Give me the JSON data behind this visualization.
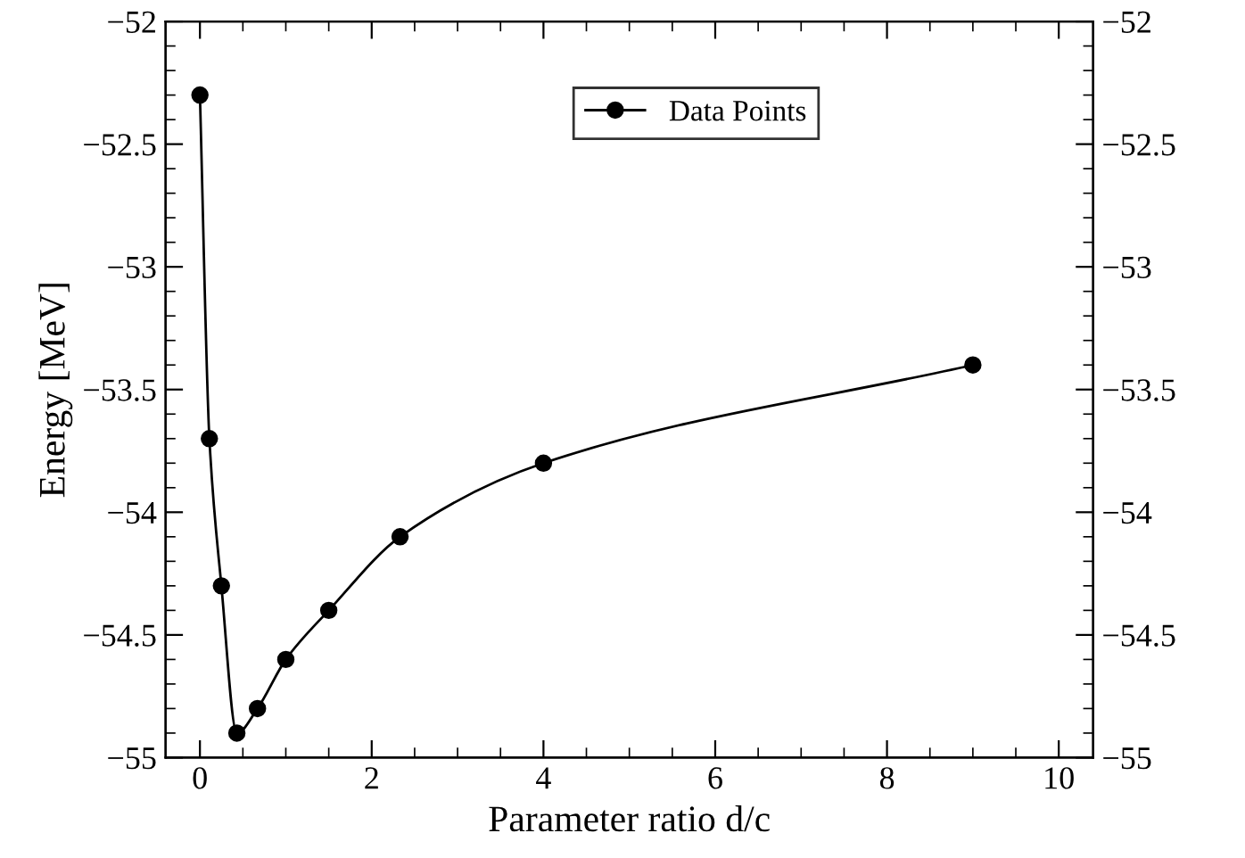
{
  "chart_data": {
    "type": "line",
    "xlabel": "Parameter ratio d/c",
    "ylabel": "Energy [MeV]",
    "x": [
      0,
      0.11,
      0.25,
      0.43,
      0.67,
      1,
      1.5,
      2.33,
      4,
      9
    ],
    "series": [
      {
        "name": "Data Points",
        "color": "#000000",
        "values": [
          -52.3,
          -53.7,
          -54.3,
          -54.9,
          -54.8,
          -54.6,
          -54.4,
          -54.1,
          -53.8,
          -53.4
        ]
      }
    ],
    "xlim": [
      -0.4,
      10.4
    ],
    "xticks": [
      0,
      2,
      4,
      6,
      8,
      10
    ],
    "ylim": [
      -55,
      -52
    ],
    "yticks": [
      -55,
      -54.5,
      -54,
      -53.5,
      -53,
      -52.5,
      -52
    ],
    "y2lim": [
      -55,
      -52
    ],
    "y2ticks": [
      -55,
      -54.5,
      -54,
      -53.5,
      -53,
      -52.5,
      -52
    ],
    "marker": "circle",
    "line_style": "solid",
    "grid": false,
    "legend": "top right"
  }
}
